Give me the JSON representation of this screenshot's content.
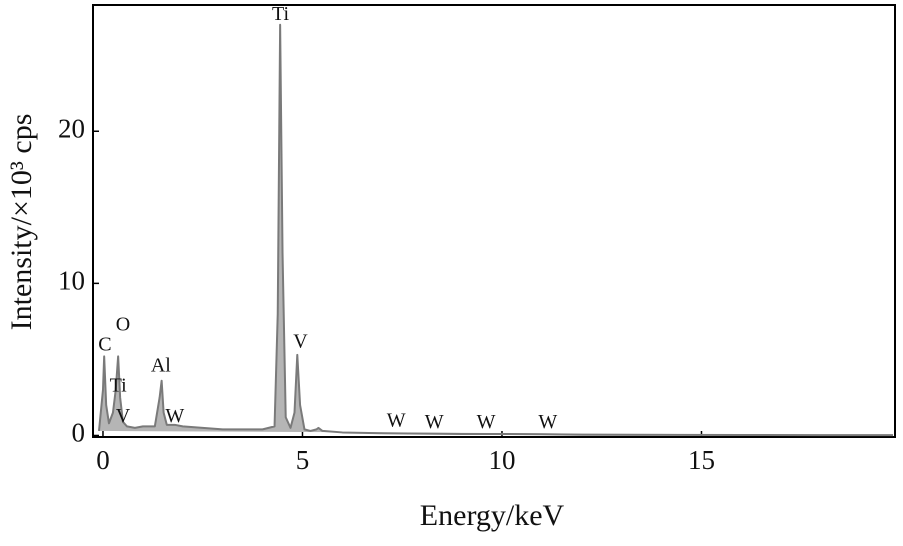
{
  "chart_data": {
    "type": "line",
    "x_label": "Energy/keV",
    "y_label": "Intensity/×10³ cps",
    "xlim": [
      -0.25,
      19.85
    ],
    "ylim": [
      -0.1,
      28.3
    ],
    "xticks": [
      0,
      5,
      10,
      15
    ],
    "yticks": [
      0,
      10,
      20
    ],
    "grid": false,
    "series": [
      {
        "color": "#7a7a7a",
        "x": [
          -0.1,
          0.0,
          0.03,
          0.08,
          0.15,
          0.25,
          0.32,
          0.38,
          0.43,
          0.5,
          0.6,
          0.8,
          1.0,
          1.3,
          1.42,
          1.47,
          1.52,
          1.6,
          1.8,
          2.0,
          2.5,
          3.0,
          3.5,
          4.0,
          4.3,
          4.38,
          4.44,
          4.5,
          4.58,
          4.7,
          4.8,
          4.87,
          4.94,
          5.05,
          5.2,
          5.35,
          5.4,
          5.5,
          6,
          7,
          8,
          9,
          10,
          11,
          12,
          14,
          16,
          18,
          19.8
        ],
        "values": [
          0.3,
          3.0,
          5.2,
          2.0,
          0.8,
          1.5,
          3.0,
          5.2,
          2.5,
          0.9,
          0.6,
          0.5,
          0.6,
          0.6,
          2.5,
          3.6,
          1.5,
          0.7,
          0.7,
          0.6,
          0.5,
          0.4,
          0.4,
          0.4,
          0.6,
          8,
          27,
          12,
          1.2,
          0.5,
          1.5,
          5.3,
          2.0,
          0.4,
          0.3,
          0.4,
          0.5,
          0.3,
          0.2,
          0.15,
          0.12,
          0.1,
          0.1,
          0.08,
          0.05,
          0.04,
          0.03,
          0.02,
          0.02
        ]
      }
    ],
    "annotations": [
      {
        "text": "Ti",
        "x": 4.45,
        "y": 27.6
      },
      {
        "text": "V",
        "x": 4.95,
        "y": 6.1
      },
      {
        "text": "C",
        "x": 0.05,
        "y": 5.9
      },
      {
        "text": "O",
        "x": 0.5,
        "y": 7.2
      },
      {
        "text": "Ti",
        "x": 0.38,
        "y": 3.2
      },
      {
        "text": "V",
        "x": 0.5,
        "y": 1.2
      },
      {
        "text": "Al",
        "x": 1.45,
        "y": 4.5
      },
      {
        "text": "W",
        "x": 1.8,
        "y": 1.2
      },
      {
        "text": "W",
        "x": 7.35,
        "y": 0.9
      },
      {
        "text": "W",
        "x": 8.3,
        "y": 0.8
      },
      {
        "text": "W",
        "x": 9.6,
        "y": 0.8
      },
      {
        "text": "W",
        "x": 11.15,
        "y": 0.8
      }
    ]
  }
}
